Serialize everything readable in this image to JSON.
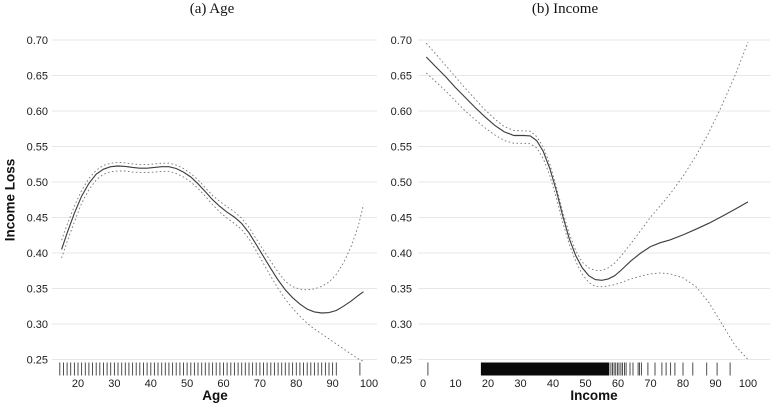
{
  "figure": {
    "y_axis_label": "Income Loss",
    "colors": {
      "background": "#ffffff",
      "gridline": "#e7e7e7",
      "solid_curve": "#3f3f3f",
      "dashed_curve": "#757575",
      "rug": "#3a3a3a",
      "rug_dense": "#0a0a0a",
      "text": "#141414"
    }
  },
  "chart_data": [
    {
      "type": "line",
      "title": "(a) Age",
      "xlabel": "Age",
      "ylabel": "Income Loss",
      "xlim": [
        13,
        101.5
      ],
      "ylim": [
        0.25,
        0.7
      ],
      "grid": true,
      "legend": false,
      "x_ticks": [
        "20",
        "30",
        "40",
        "50",
        "60",
        "70",
        "80",
        "90",
        "100"
      ],
      "y_ticks": [
        "0.25",
        "0.30",
        "0.35",
        "0.40",
        "0.45",
        "0.50",
        "0.55",
        "0.60",
        "0.65",
        "0.70"
      ],
      "x": [
        15.5,
        17,
        19,
        21,
        23,
        25,
        27,
        29,
        31,
        33,
        35,
        37,
        39,
        41,
        43,
        45,
        47,
        49,
        51,
        53,
        55,
        57,
        59,
        61,
        63,
        65,
        67,
        69,
        71,
        73,
        75,
        77,
        79,
        81,
        83,
        85,
        87,
        89,
        91,
        93,
        95,
        97,
        98.5
      ],
      "series": [
        {
          "name": "estimate",
          "style": "solid",
          "y": [
            0.405,
            0.428,
            0.456,
            0.48,
            0.498,
            0.511,
            0.518,
            0.5215,
            0.5225,
            0.522,
            0.5205,
            0.5195,
            0.5195,
            0.5205,
            0.5215,
            0.5215,
            0.519,
            0.514,
            0.507,
            0.4975,
            0.4865,
            0.475,
            0.4655,
            0.4575,
            0.4505,
            0.4415,
            0.4285,
            0.412,
            0.395,
            0.378,
            0.362,
            0.348,
            0.337,
            0.328,
            0.321,
            0.317,
            0.3155,
            0.316,
            0.319,
            0.325,
            0.332,
            0.34,
            0.3455
          ]
        },
        {
          "name": "upper-band",
          "style": "dashed",
          "y": [
            0.418,
            0.44,
            0.466,
            0.488,
            0.505,
            0.5165,
            0.5235,
            0.5265,
            0.5275,
            0.527,
            0.5255,
            0.5245,
            0.5245,
            0.5255,
            0.5265,
            0.5265,
            0.524,
            0.519,
            0.512,
            0.503,
            0.492,
            0.481,
            0.4725,
            0.465,
            0.458,
            0.449,
            0.436,
            0.42,
            0.404,
            0.388,
            0.373,
            0.36,
            0.3525,
            0.349,
            0.348,
            0.3495,
            0.353,
            0.359,
            0.37,
            0.386,
            0.408,
            0.437,
            0.468
          ]
        },
        {
          "name": "lower-band",
          "style": "dashed",
          "y": [
            0.393,
            0.416,
            0.444,
            0.47,
            0.489,
            0.503,
            0.511,
            0.5145,
            0.5155,
            0.5155,
            0.514,
            0.5135,
            0.5135,
            0.514,
            0.515,
            0.515,
            0.512,
            0.507,
            0.5,
            0.491,
            0.48,
            0.468,
            0.4575,
            0.449,
            0.4415,
            0.433,
            0.42,
            0.403,
            0.385,
            0.367,
            0.35,
            0.335,
            0.322,
            0.311,
            0.301,
            0.293,
            0.286,
            0.279,
            0.272,
            0.265,
            0.258,
            0.251,
            0.2475
          ]
        }
      ],
      "rug": {
        "ticks": [
          15,
          16,
          17,
          18,
          19,
          20,
          21,
          22,
          23,
          24,
          25,
          26,
          27,
          28,
          29,
          30,
          31,
          32,
          33,
          34,
          35,
          36,
          37,
          38,
          39,
          40,
          41,
          42,
          43,
          44,
          45,
          46,
          47,
          48,
          49,
          50,
          51,
          52,
          53,
          54,
          55,
          56,
          57,
          58,
          59,
          60,
          61,
          62,
          63,
          64,
          65,
          66,
          67,
          68,
          69,
          70,
          71,
          72,
          73,
          74,
          75,
          76,
          77,
          78,
          79,
          80,
          81,
          82,
          83,
          84,
          85,
          86,
          87,
          88,
          89,
          90,
          91,
          97.5
        ]
      }
    },
    {
      "type": "line",
      "title": "(b) Income",
      "xlabel": "Income",
      "ylabel": "Income Loss",
      "xlim": [
        -1.5,
        106.5
      ],
      "ylim": [
        0.25,
        0.7
      ],
      "grid": true,
      "legend": false,
      "x_ticks": [
        "0",
        "10",
        "20",
        "30",
        "40",
        "50",
        "60",
        "70",
        "80",
        "90",
        "100"
      ],
      "y_ticks": [
        "0.25",
        "0.30",
        "0.35",
        "0.40",
        "0.45",
        "0.50",
        "0.55",
        "0.60",
        "0.65",
        "0.70"
      ],
      "x": [
        1,
        4,
        7,
        10,
        13,
        16,
        19,
        22,
        25,
        28,
        31,
        33,
        35,
        37,
        39,
        41,
        43,
        45,
        47,
        49,
        51,
        53,
        55,
        57,
        59,
        61,
        64,
        67,
        70,
        73,
        76,
        80,
        84,
        88,
        92,
        96,
        100
      ],
      "series": [
        {
          "name": "estimate",
          "style": "solid",
          "y": [
            0.676,
            0.662,
            0.648,
            0.633,
            0.619,
            0.605,
            0.592,
            0.58,
            0.5705,
            0.5655,
            0.5655,
            0.565,
            0.558,
            0.543,
            0.519,
            0.488,
            0.452,
            0.42,
            0.396,
            0.379,
            0.368,
            0.3625,
            0.3615,
            0.3635,
            0.368,
            0.376,
            0.389,
            0.4,
            0.409,
            0.4145,
            0.4185,
            0.4255,
            0.4335,
            0.442,
            0.4515,
            0.4615,
            0.472
          ]
        },
        {
          "name": "upper-band",
          "style": "dashed",
          "y": [
            0.6955,
            0.68,
            0.664,
            0.648,
            0.632,
            0.617,
            0.602,
            0.589,
            0.578,
            0.5725,
            0.572,
            0.5715,
            0.564,
            0.549,
            0.525,
            0.494,
            0.458,
            0.427,
            0.403,
            0.387,
            0.379,
            0.3755,
            0.3755,
            0.379,
            0.386,
            0.396,
            0.4135,
            0.432,
            0.4505,
            0.4665,
            0.483,
            0.508,
            0.537,
            0.57,
            0.608,
            0.65,
            0.697
          ]
        },
        {
          "name": "lower-band",
          "style": "dashed",
          "y": [
            0.6535,
            0.641,
            0.628,
            0.614,
            0.6,
            0.588,
            0.5765,
            0.5665,
            0.5585,
            0.5545,
            0.5545,
            0.554,
            0.548,
            0.533,
            0.509,
            0.478,
            0.443,
            0.412,
            0.388,
            0.37,
            0.3585,
            0.353,
            0.3525,
            0.3535,
            0.3555,
            0.3585,
            0.3635,
            0.3675,
            0.3705,
            0.372,
            0.3705,
            0.365,
            0.3525,
            0.33,
            0.3,
            0.27,
            0.25
          ]
        }
      ],
      "rug": {
        "band": [
          17.8,
          57.3
        ],
        "ticks": [
          1.5,
          57.8,
          58.3,
          58.8,
          59.3,
          59.8,
          60.3,
          60.9,
          61.4,
          62.0,
          62.5,
          63.7,
          64.6,
          66.2,
          66.6,
          67.2,
          69.2,
          71.4,
          73.5,
          74.8,
          76.2,
          77.5,
          80.0,
          83.0,
          87.3,
          90.5,
          94.5
        ]
      }
    }
  ]
}
